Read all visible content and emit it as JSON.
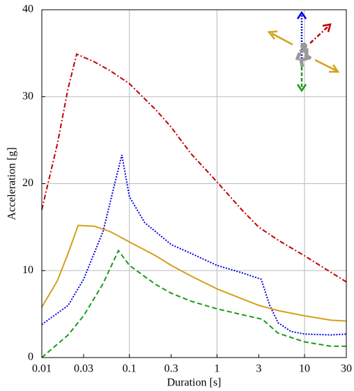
{
  "chart_data": {
    "type": "line",
    "xlabel": "Duration [s]",
    "ylabel": "Acceleration [g]",
    "xscale": "log",
    "xlim": [
      0.01,
      30
    ],
    "ylim": [
      0,
      40
    ],
    "xticks": [
      0.01,
      0.03,
      0.1,
      0.3,
      1,
      3,
      10,
      30
    ],
    "yticks": [
      0,
      10,
      20,
      30,
      40
    ],
    "xgrid": [
      0.1,
      1,
      10
    ],
    "grid": true,
    "series": [
      {
        "color": "#c00000",
        "linestyle": "dash-dot",
        "x": [
          0.01,
          0.015,
          0.02,
          0.025,
          0.04,
          0.06,
          0.1,
          0.2,
          0.3,
          0.5,
          1,
          2,
          3,
          5,
          10,
          20,
          30
        ],
        "values": [
          17,
          24.5,
          31,
          34.9,
          34,
          33,
          31.5,
          28.5,
          26.5,
          23.5,
          20.2,
          16.8,
          15,
          13.5,
          11.7,
          9.8,
          8.7
        ]
      },
      {
        "color": "#0000e0",
        "linestyle": "dotted",
        "x": [
          0.01,
          0.02,
          0.03,
          0.05,
          0.07,
          0.082,
          0.1,
          0.15,
          0.3,
          0.5,
          1,
          2,
          3.2,
          4,
          5,
          7,
          10,
          20,
          30
        ],
        "values": [
          3.8,
          6,
          9,
          14.5,
          20.5,
          23.3,
          18.5,
          15.5,
          13,
          12,
          10.6,
          9.7,
          9.0,
          6,
          4,
          3,
          2.7,
          2.6,
          2.7
        ]
      },
      {
        "color": "#d4a017",
        "linestyle": "solid",
        "x": [
          0.01,
          0.015,
          0.02,
          0.026,
          0.04,
          0.06,
          0.1,
          0.2,
          0.3,
          0.5,
          1,
          2,
          3,
          5,
          10,
          20,
          30
        ],
        "values": [
          5.8,
          8.8,
          12,
          15.2,
          15.1,
          14.5,
          13.3,
          11.7,
          10.6,
          9.4,
          7.9,
          6.7,
          6.0,
          5.4,
          4.8,
          4.3,
          4.2
        ]
      },
      {
        "color": "#1a9a1a",
        "linestyle": "dashed",
        "x": [
          0.01,
          0.02,
          0.03,
          0.05,
          0.075,
          0.1,
          0.2,
          0.3,
          0.5,
          1,
          2,
          3.3,
          5,
          10,
          20,
          30
        ],
        "values": [
          0,
          2.6,
          4.8,
          8.5,
          12.3,
          10.6,
          8.4,
          7.4,
          6.5,
          5.6,
          4.9,
          4.4,
          2.8,
          1.8,
          1.3,
          1.3
        ]
      }
    ]
  }
}
